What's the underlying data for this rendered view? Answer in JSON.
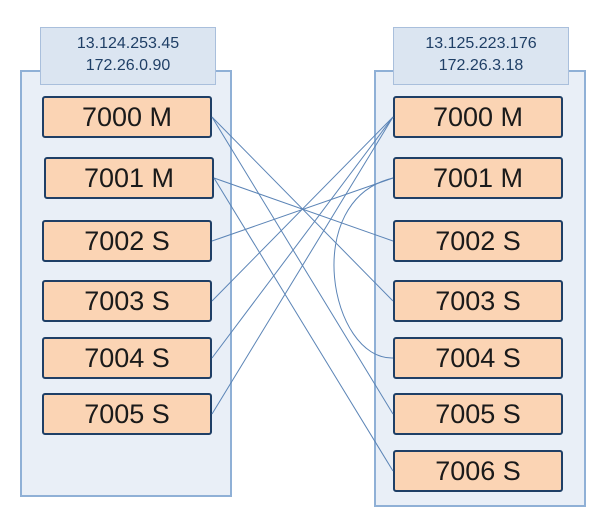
{
  "servers": [
    {
      "id": "left",
      "ip_public": "13.124.253.45",
      "ip_private": "172.26.0.90",
      "nodes": [
        {
          "label": "7000 M"
        },
        {
          "label": "7001 M"
        },
        {
          "label": "7002 S"
        },
        {
          "label": "7003 S"
        },
        {
          "label": "7004 S"
        },
        {
          "label": "7005 S"
        }
      ]
    },
    {
      "id": "right",
      "ip_public": "13.125.223.176",
      "ip_private": "172.26.3.18",
      "nodes": [
        {
          "label": "7000 M"
        },
        {
          "label": "7001 M"
        },
        {
          "label": "7002 S"
        },
        {
          "label": "7003 S"
        },
        {
          "label": "7004 S"
        },
        {
          "label": "7005 S"
        },
        {
          "label": "7006 S"
        }
      ]
    }
  ],
  "colors": {
    "link": "#5b84b6",
    "node_fill": "#fbd4b4",
    "node_border": "#1f3f66",
    "server_fill": "#e9eff7",
    "server_border": "#8fb0d6"
  },
  "links": [
    {
      "from": "left.7000 M",
      "to": "right.7003 S"
    },
    {
      "from": "left.7000 M",
      "to": "right.7005 S"
    },
    {
      "from": "left.7001 M",
      "to": "right.7002 S"
    },
    {
      "from": "left.7001 M",
      "to": "right.7006 S"
    },
    {
      "from": "left.7002 S",
      "to": "right.7001 M"
    },
    {
      "from": "left.7003 S",
      "to": "right.7000 M"
    },
    {
      "from": "left.7004 S",
      "to": "right.7000 M"
    },
    {
      "from": "left.7005 S",
      "to": "right.7000 M"
    },
    {
      "from": "right.7001 M",
      "to": "right.7004 S"
    }
  ]
}
